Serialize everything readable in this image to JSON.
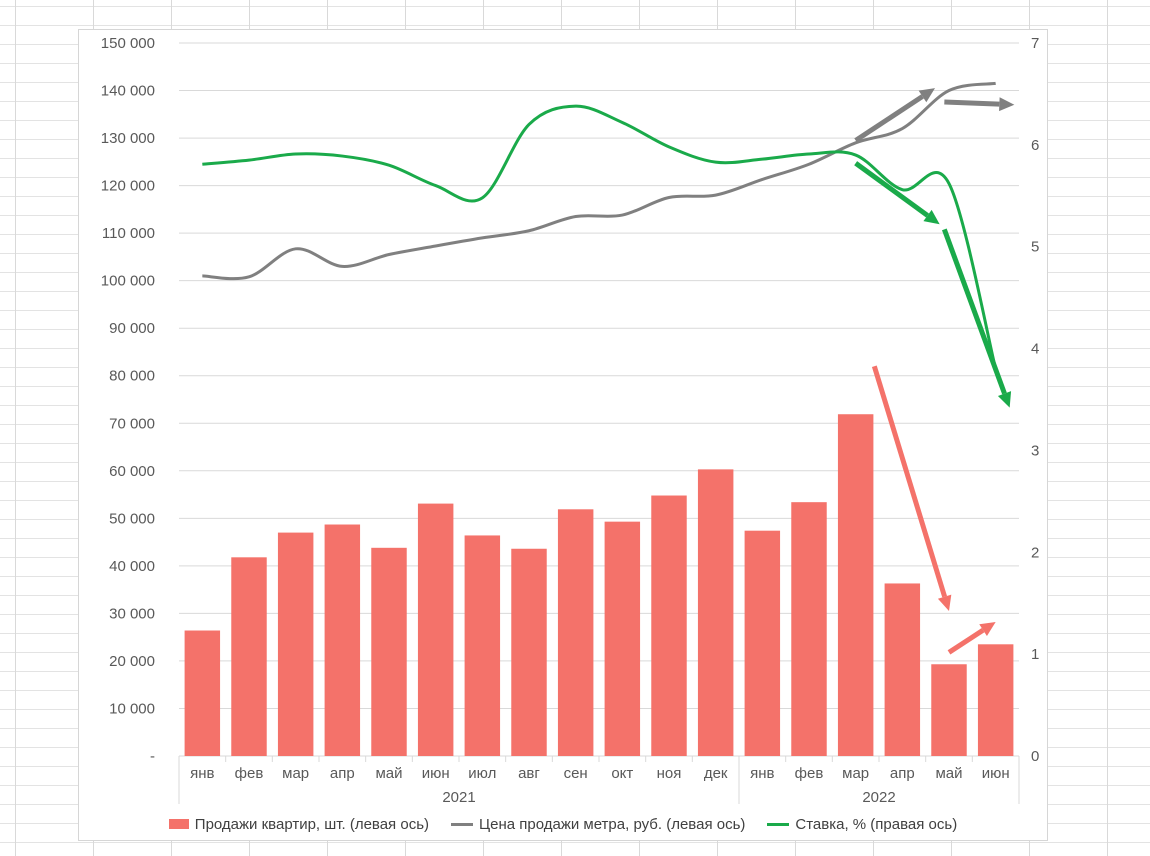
{
  "chart_data": {
    "type": "bar",
    "title": "",
    "categories": [
      "янв",
      "фев",
      "мар",
      "апр",
      "май",
      "июн",
      "июл",
      "авг",
      "сен",
      "окт",
      "ноя",
      "дек",
      "янв",
      "фев",
      "мар",
      "апр",
      "май",
      "июн"
    ],
    "groups": [
      {
        "label": "2021",
        "count": 12
      },
      {
        "label": "2022",
        "count": 6
      }
    ],
    "left_axis": {
      "ylim": [
        0,
        150000
      ],
      "ticks": [
        "-",
        "10 000",
        "20 000",
        "30 000",
        "40 000",
        "50 000",
        "60 000",
        "70 000",
        "80 000",
        "90 000",
        "100 000",
        "110 000",
        "120 000",
        "130 000",
        "140 000",
        "150 000"
      ]
    },
    "right_axis": {
      "ylim": [
        0,
        7
      ],
      "ticks": [
        "0",
        "1",
        "2",
        "3",
        "4",
        "5",
        "6",
        "7"
      ]
    },
    "series": [
      {
        "name": "Продажи квартир, шт. (левая ось)",
        "type": "bar",
        "axis": "left",
        "color": "#f4726a",
        "values": [
          26400,
          41800,
          47000,
          48700,
          43800,
          53100,
          46400,
          43600,
          51900,
          49300,
          54800,
          60300,
          47400,
          53400,
          71900,
          36300,
          19300,
          23500
        ]
      },
      {
        "name": "Цена продажи метра, руб. (левая ось)",
        "type": "line",
        "axis": "left",
        "color": "#808080",
        "values": [
          101000,
          100800,
          106700,
          103000,
          105500,
          107300,
          109000,
          110500,
          113500,
          113800,
          117500,
          118000,
          121300,
          124500,
          129000,
          132000,
          140000,
          141500
        ]
      },
      {
        "name": "Ставка, % (правая ось)",
        "type": "line",
        "axis": "right",
        "color": "#1aaa4a",
        "values": [
          5.81,
          5.85,
          5.91,
          5.89,
          5.8,
          5.6,
          5.48,
          6.2,
          6.38,
          6.22,
          5.98,
          5.83,
          5.86,
          5.91,
          5.9,
          5.56,
          5.62,
          3.8
        ]
      }
    ],
    "annotations": [
      {
        "kind": "arrow",
        "color": "#808080",
        "from": [
          14.0,
          129500
        ],
        "to": [
          15.7,
          140500
        ]
      },
      {
        "kind": "arrow",
        "color": "#808080",
        "from": [
          15.9,
          137600
        ],
        "to": [
          17.4,
          137000
        ]
      },
      {
        "kind": "arrow",
        "color": "#1aaa4a",
        "axis": "right",
        "from": [
          14.0,
          5.82
        ],
        "to": [
          15.8,
          5.22
        ]
      },
      {
        "kind": "arrow",
        "color": "#1aaa4a",
        "axis": "right",
        "from": [
          15.9,
          5.17
        ],
        "to": [
          17.3,
          3.42
        ]
      },
      {
        "kind": "arrow",
        "color": "#f4726a",
        "from": [
          14.4,
          82000
        ],
        "to": [
          16.0,
          30500
        ]
      },
      {
        "kind": "arrow",
        "color": "#f4726a",
        "from": [
          16.0,
          21800
        ],
        "to": [
          17.0,
          28200
        ]
      }
    ],
    "legend_position": "bottom",
    "grid": true
  }
}
